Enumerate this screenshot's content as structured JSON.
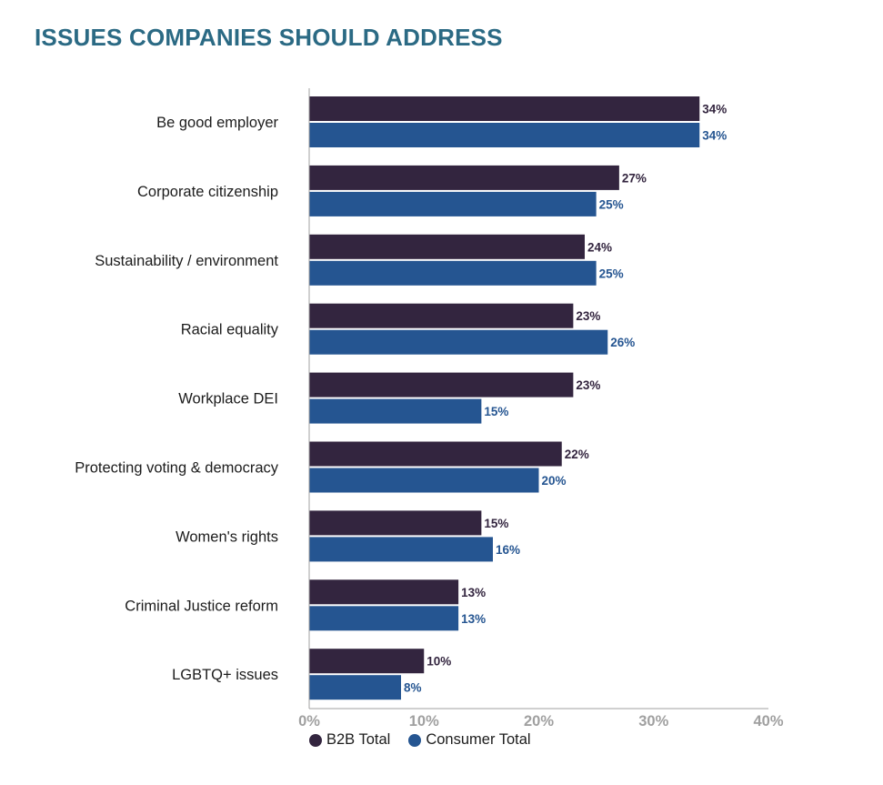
{
  "chart_data": {
    "type": "bar",
    "orientation": "horizontal",
    "title": "ISSUES COMPANIES SHOULD ADDRESS",
    "categories": [
      "Be good employer",
      "Corporate citizenship",
      "Sustainability / environment",
      "Racial equality",
      "Workplace DEI",
      "Protecting voting & democracy",
      "Women's rights",
      "Criminal Justice reform",
      "LGBTQ+ issues"
    ],
    "series": [
      {
        "name": "B2B Total",
        "color": "#33253f",
        "values": [
          34,
          27,
          24,
          23,
          23,
          22,
          15,
          13,
          10
        ],
        "labels": [
          "34%",
          "27%",
          "24%",
          "23%",
          "23%",
          "22%",
          "15%",
          "13%",
          "10%"
        ]
      },
      {
        "name": "Consumer Total",
        "color": "#255591",
        "values": [
          34,
          25,
          25,
          26,
          15,
          20,
          16,
          13,
          8
        ],
        "labels": [
          "34%",
          "25%",
          "25%",
          "26%",
          "15%",
          "20%",
          "16%",
          "13%",
          "8%"
        ]
      }
    ],
    "xlim": [
      0,
      40
    ],
    "xticks": [
      0,
      10,
      20,
      30,
      40
    ],
    "xtick_labels": [
      "0%",
      "10%",
      "20%",
      "30%",
      "40%"
    ],
    "xlabel": "",
    "ylabel": "",
    "grid": false,
    "legend_position": "bottom-center"
  },
  "colors": {
    "title": "#2b6a84",
    "axis": "#a0a0a0"
  }
}
